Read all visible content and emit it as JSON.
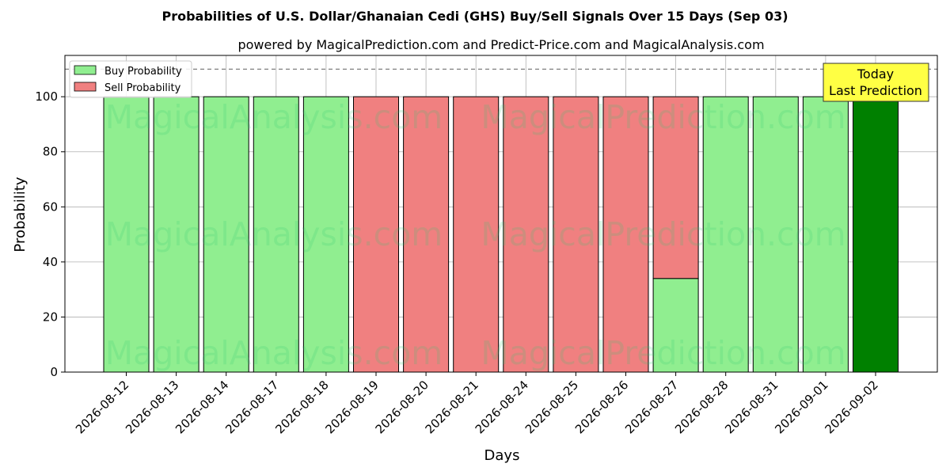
{
  "chart_data": {
    "type": "bar",
    "title": "Probabilities of U.S. Dollar/Ghanaian Cedi (GHS) Buy/Sell Signals Over 15 Days (Sep 03)",
    "subtitle": "powered by MagicalPrediction.com and Predict-Price.com and MagicalAnalysis.com",
    "xlabel": "Days",
    "ylabel": "Probability",
    "ylim": [
      0,
      115
    ],
    "yticks": [
      0,
      20,
      40,
      60,
      80,
      100
    ],
    "reference_line": 110,
    "grid": true,
    "legend_position": "top-left",
    "categories": [
      "2026-08-12",
      "2026-08-13",
      "2026-08-14",
      "2026-08-17",
      "2026-08-18",
      "2026-08-19",
      "2026-08-20",
      "2026-08-21",
      "2026-08-24",
      "2026-08-25",
      "2026-08-26",
      "2026-08-27",
      "2026-08-28",
      "2026-08-31",
      "2026-09-01",
      "2026-09-02"
    ],
    "series": [
      {
        "name": "Buy Probability",
        "color": "#90ee90",
        "values": [
          100,
          100,
          100,
          100,
          100,
          0,
          0,
          0,
          0,
          0,
          0,
          34,
          100,
          100,
          100,
          100
        ]
      },
      {
        "name": "Sell Probability",
        "color": "#f08080",
        "values": [
          0,
          0,
          0,
          0,
          0,
          100,
          100,
          100,
          100,
          100,
          100,
          66,
          0,
          0,
          0,
          0
        ]
      }
    ],
    "highlight": {
      "index": 15,
      "color": "#008000",
      "label_line1": "Today",
      "label_line2": "Last Prediction",
      "box_color": "#ffff44"
    },
    "watermarks": [
      "MagicalAnalysis.com",
      "MagicalPrediction.com"
    ]
  }
}
